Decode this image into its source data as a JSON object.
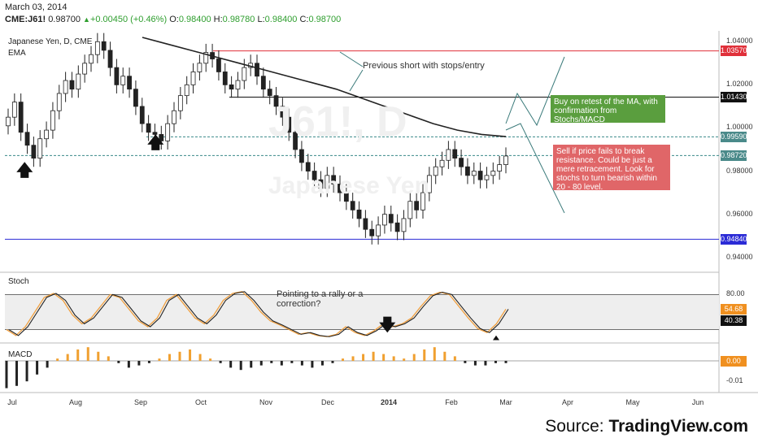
{
  "header": {
    "date": "March 03, 2014",
    "symbol": "CME:J61!",
    "last": "0.98700",
    "change": "+0.00450 (+0.46%)",
    "o_label": "O:",
    "o": "0.98400",
    "h_label": "H:",
    "h": "0.98780",
    "l_label": "L:",
    "l": "0.98400",
    "c_label": "C:",
    "c": "0.98700"
  },
  "panes": {
    "price_title": "Japanese Yen, D, CME",
    "price_ema": "EMA",
    "stoch_title": "Stoch",
    "macd_title": "MACD"
  },
  "annotations": {
    "previous_short": "Previous short with stops/entry",
    "buy_note": "Buy on retest of the MA, with confirmation from Stochs/MACD",
    "sell_note": "Sell if price fails to break resistance. Could be just a mere retracement. Look for stochs to turn bearish within 20 - 80 level.",
    "stoch_note": "Pointing to a rally or a correction?"
  },
  "watermark": {
    "symbol": "J61!, D",
    "name": "Japanese Yen"
  },
  "source": {
    "prefix": "Source: ",
    "brand": "TradingView.com"
  },
  "colors": {
    "up_candle": "#ffffff",
    "down_candle": "#222222",
    "ema": "#222222",
    "red_line": "#e0303a",
    "blue_line": "#2b2bd6",
    "dashed_level": "#3a8a8a",
    "buy_box": "#5a9e3e",
    "sell_box": "#e06668",
    "stoch_k": "#222222",
    "stoch_d": "#f0a040",
    "macd_pos": "#f0a030",
    "macd_neg": "#222222",
    "plate_red": "#e0303a",
    "plate_black": "#111111",
    "plate_teal": "#4a8a8a",
    "plate_blue": "#2b2bd6",
    "plate_orange": "#f09020"
  },
  "chart_data": {
    "type": "candlestick",
    "title": "Japanese Yen, D, CME",
    "x_ticks": [
      "Jul",
      "Aug",
      "Sep",
      "Oct",
      "Nov",
      "Dec",
      "2014",
      "Feb",
      "Mar",
      "Apr",
      "May",
      "Jun"
    ],
    "y_ticks": [
      "1.04000",
      "1.02000",
      "1.00000",
      "0.98000",
      "0.96000",
      "0.94000"
    ],
    "ylim": [
      0.935,
      1.045
    ],
    "levels": [
      {
        "value": 1.0357,
        "label": "1.03570",
        "style": "red"
      },
      {
        "value": 1.0143,
        "label": "1.01430",
        "style": "black"
      },
      {
        "value": 0.9959,
        "label": "0.99590",
        "style": "teal-dashed"
      },
      {
        "value": 0.9872,
        "label": "0.98720",
        "style": "teal-dashed"
      },
      {
        "value": 0.9484,
        "label": "0.94840",
        "style": "blue"
      }
    ],
    "closes": [
      1.005,
      1.012,
      0.998,
      0.992,
      0.986,
      0.995,
      0.999,
      1.008,
      1.016,
      1.022,
      1.018,
      1.025,
      1.03,
      1.034,
      1.04,
      1.036,
      1.028,
      1.02,
      1.024,
      1.018,
      1.01,
      1.002,
      0.998,
      0.997,
      0.994,
      1.002,
      1.008,
      1.015,
      1.02,
      1.026,
      1.03,
      1.035,
      1.032,
      1.026,
      1.02,
      1.018,
      1.022,
      1.028,
      1.03,
      1.024,
      1.018,
      1.015,
      1.01,
      1.005,
      0.998,
      0.99,
      0.984,
      0.98,
      0.976,
      0.972,
      0.978,
      0.974,
      0.97,
      0.966,
      0.962,
      0.958,
      0.953,
      0.95,
      0.955,
      0.96,
      0.956,
      0.952,
      0.958,
      0.966,
      0.962,
      0.97,
      0.978,
      0.982,
      0.985,
      0.99,
      0.986,
      0.982,
      0.978,
      0.98,
      0.976,
      0.978,
      0.98,
      0.983,
      0.987
    ],
    "ema_values": [
      1.042,
      1.039,
      1.036,
      1.033,
      1.03,
      1.027,
      1.024,
      1.021,
      1.018,
      1.014,
      1.01,
      1.006,
      1.002,
      0.999,
      0.997,
      0.996
    ],
    "stoch": {
      "ylim": [
        0,
        100
      ],
      "y_ticks": [
        "80.00"
      ],
      "k_last": "54.68",
      "d_last": "40.38",
      "k": [
        20,
        10,
        25,
        50,
        75,
        82,
        70,
        45,
        30,
        40,
        60,
        80,
        75,
        55,
        35,
        25,
        40,
        70,
        80,
        60,
        40,
        30,
        45,
        70,
        82,
        85,
        70,
        50,
        35,
        28,
        20,
        12,
        15,
        10,
        8,
        12,
        25,
        15,
        10,
        18,
        30,
        25,
        30,
        40,
        60,
        78,
        84,
        80,
        60,
        40,
        22,
        15,
        30,
        55
      ]
    },
    "macd": {
      "y_ticks": [
        "0.00",
        "-0.01"
      ],
      "last": "0.00",
      "hist": [
        -0.012,
        -0.011,
        -0.009,
        -0.006,
        -0.003,
        0.001,
        0.003,
        0.005,
        0.006,
        0.004,
        0.002,
        -0.001,
        -0.003,
        -0.002,
        -0.001,
        0.001,
        0.003,
        0.004,
        0.005,
        0.003,
        0.001,
        -0.001,
        -0.003,
        -0.004,
        -0.003,
        -0.002,
        -0.001,
        -0.002,
        -0.001,
        -0.002,
        -0.003,
        -0.002,
        -0.001,
        0.001,
        0.002,
        0.003,
        0.004,
        0.003,
        0.002,
        0.001,
        0.003,
        0.005,
        0.006,
        0.004,
        0.002,
        -0.001,
        -0.002,
        -0.002,
        -0.001,
        -0.001
      ]
    }
  }
}
